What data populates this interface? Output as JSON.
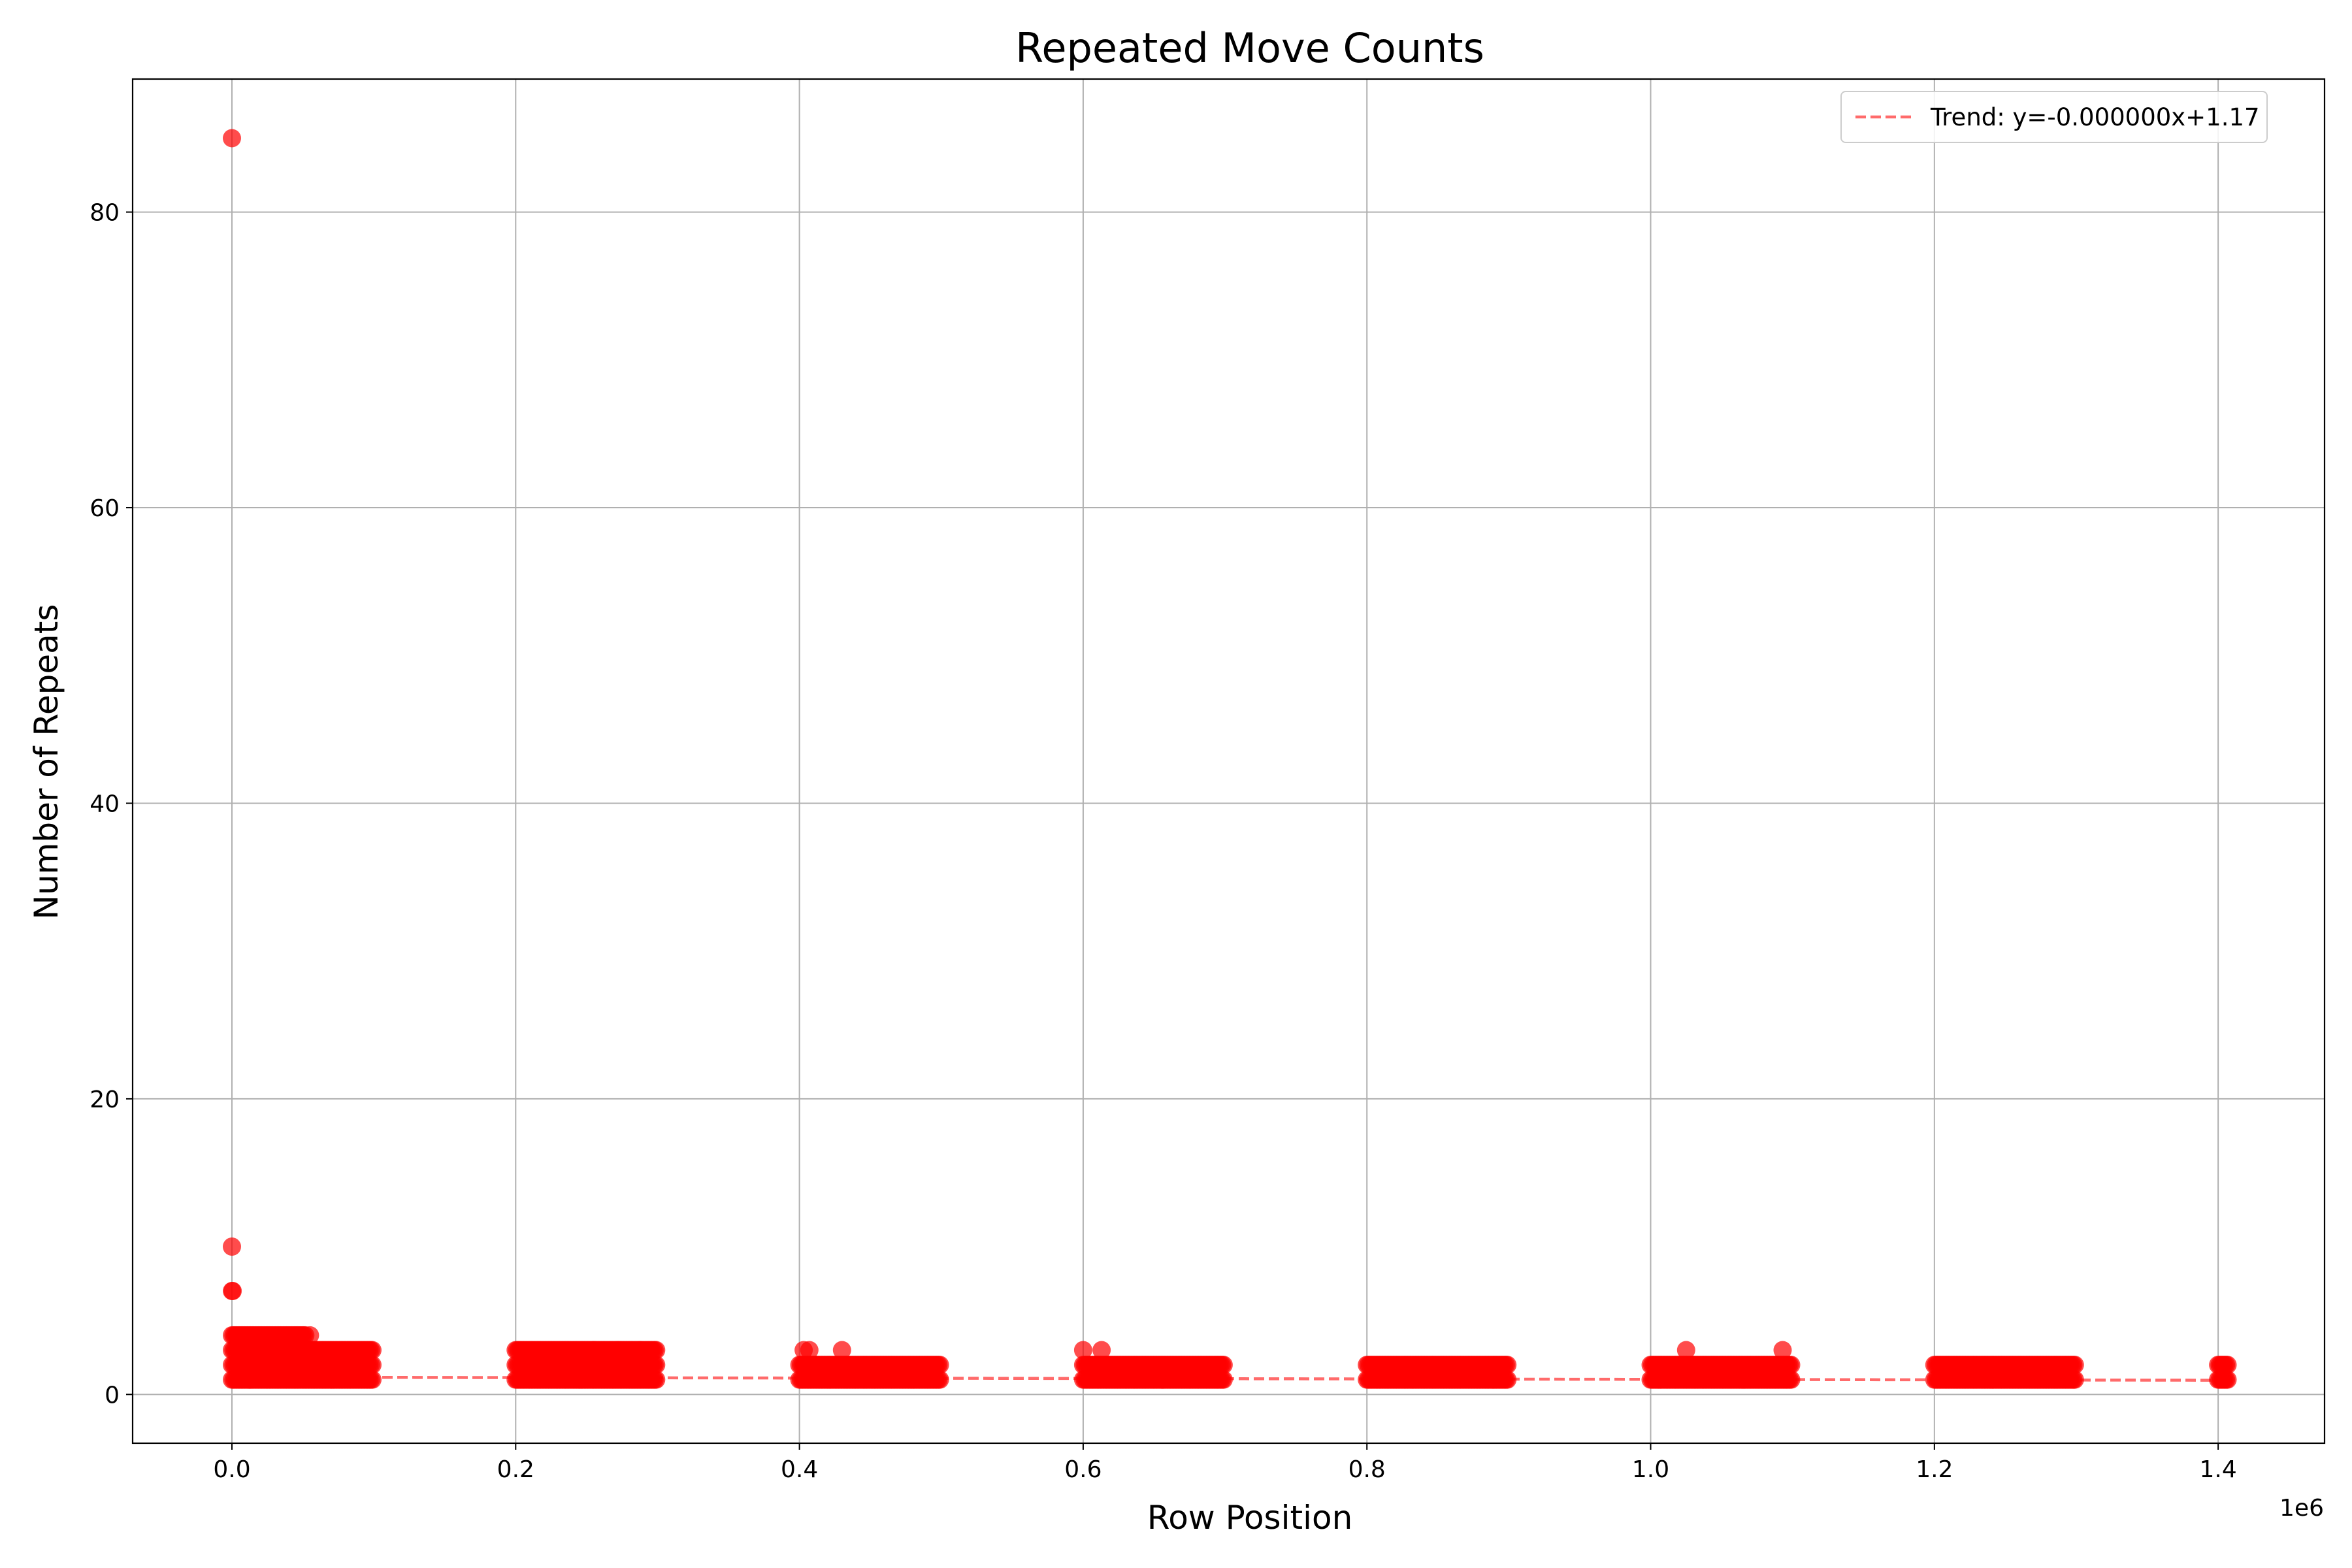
{
  "chart_data": {
    "type": "scatter",
    "title": "Repeated Move Counts",
    "xlabel": "Row Position",
    "ylabel": "Number of Repeats",
    "x_offset_label": "1e6",
    "xlim": [
      -70000,
      1475000
    ],
    "ylim": [
      -3.3,
      89
    ],
    "xticks": [
      0,
      200000,
      400000,
      600000,
      800000,
      1000000,
      1200000,
      1400000
    ],
    "xtick_labels": [
      "0.0",
      "0.2",
      "0.4",
      "0.6",
      "0.8",
      "1.0",
      "1.2",
      "1.4"
    ],
    "yticks": [
      0,
      20,
      40,
      60,
      80
    ],
    "ytick_labels": [
      "0",
      "20",
      "40",
      "60",
      "80"
    ],
    "grid": true,
    "legend_position": "top-right",
    "point_color": "#ff0000",
    "point_alpha": 0.7,
    "trend": {
      "label": "Trend: y=-0.000000x+1.17",
      "slope": -1.5e-07,
      "intercept": 1.17,
      "x_range": [
        0,
        1407000
      ],
      "color": "#ff6b6b",
      "style": "dashed"
    },
    "clusters": [
      {
        "x_range": [
          0,
          100000
        ],
        "levels": [
          1,
          2,
          3
        ]
      },
      {
        "x_range": [
          0,
          52000
        ],
        "levels": [
          4
        ]
      },
      {
        "x_range": [
          200000,
          300000
        ],
        "levels": [
          1,
          2,
          3
        ]
      },
      {
        "x_range": [
          400000,
          500000
        ],
        "levels": [
          1,
          2
        ]
      },
      {
        "x_range": [
          600000,
          700000
        ],
        "levels": [
          1,
          2
        ]
      },
      {
        "x_range": [
          800000,
          900000
        ],
        "levels": [
          1,
          2
        ]
      },
      {
        "x_range": [
          1000000,
          1100000
        ],
        "levels": [
          1,
          2
        ]
      },
      {
        "x_range": [
          1200000,
          1300000
        ],
        "levels": [
          1,
          2
        ]
      },
      {
        "x_range": [
          1400000,
          1407000
        ],
        "levels": [
          1,
          2
        ]
      }
    ],
    "points": [
      {
        "x": 0,
        "y": 85
      },
      {
        "x": 0,
        "y": 10
      },
      {
        "x": 0,
        "y": 7
      },
      {
        "x": 500,
        "y": 7
      },
      {
        "x": 55000,
        "y": 4
      },
      {
        "x": 255000,
        "y": 3
      },
      {
        "x": 272000,
        "y": 3
      },
      {
        "x": 288000,
        "y": 3
      },
      {
        "x": 403000,
        "y": 3
      },
      {
        "x": 407000,
        "y": 3
      },
      {
        "x": 430000,
        "y": 3
      },
      {
        "x": 600000,
        "y": 3
      },
      {
        "x": 613000,
        "y": 3
      },
      {
        "x": 1025000,
        "y": 3
      },
      {
        "x": 1093000,
        "y": 3
      }
    ]
  }
}
